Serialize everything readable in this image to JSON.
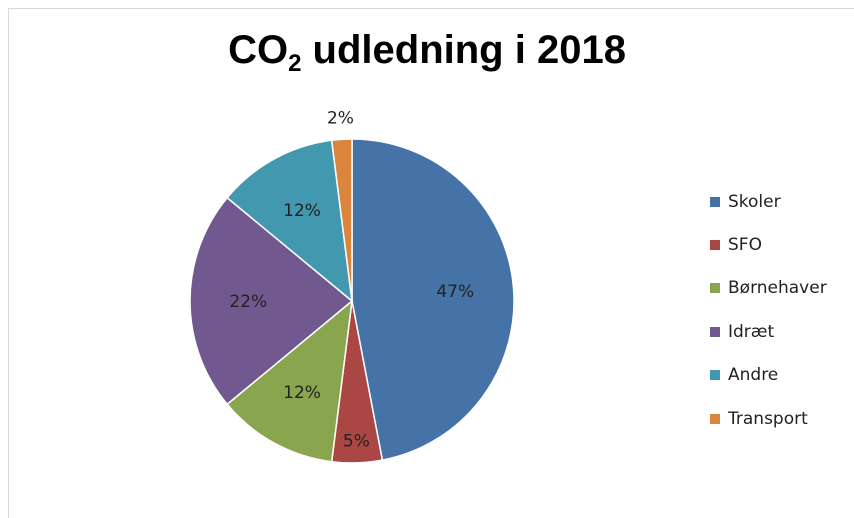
{
  "title": {
    "prefix": "CO",
    "subscript": "2",
    "suffix": " udledning i 2018"
  },
  "chart_data": {
    "type": "pie",
    "title": "CO2 udledning i 2018",
    "slices": [
      {
        "name": "Skoler",
        "value": 47,
        "label": "47%",
        "color": "#4572A7"
      },
      {
        "name": "SFO",
        "value": 5,
        "label": "5%",
        "color": "#AA4643"
      },
      {
        "name": "Børnehaver",
        "value": 12,
        "label": "12%",
        "color": "#89A54E"
      },
      {
        "name": "Idræt",
        "value": 22,
        "label": "22%",
        "color": "#71588F"
      },
      {
        "name": "Andre",
        "value": 12,
        "label": "12%",
        "color": "#4198AF"
      },
      {
        "name": "Transport",
        "value": 2,
        "label": "2%",
        "color": "#DB843D"
      }
    ],
    "legend_position": "right"
  }
}
